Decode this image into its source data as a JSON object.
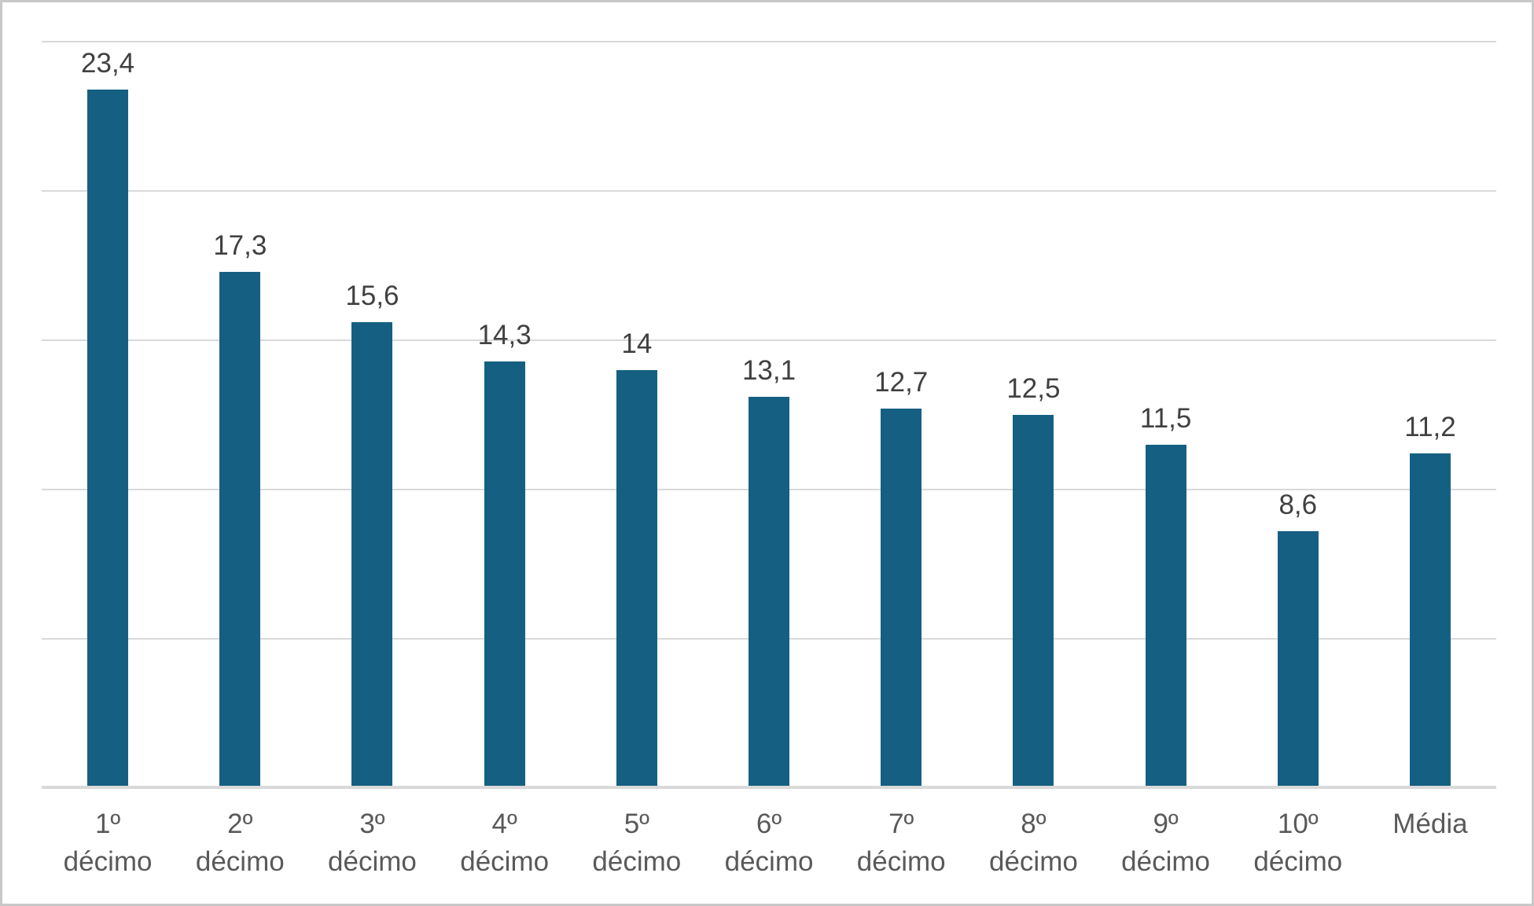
{
  "chart_data": {
    "type": "bar",
    "title": "",
    "xlabel": "",
    "ylabel": "",
    "categories": [
      "1º décimo",
      "2º décimo",
      "3º décimo",
      "4º décimo",
      "5º décimo",
      "6º décimo",
      "7º décimo",
      "8º décimo",
      "9º décimo",
      "10º décimo",
      "Média"
    ],
    "values": [
      23.4,
      17.3,
      15.6,
      14.3,
      14,
      13.1,
      12.7,
      12.5,
      11.5,
      8.6,
      11.2
    ],
    "value_labels": [
      "23,4",
      "17,3",
      "15,6",
      "14,3",
      "14",
      "13,1",
      "12,7",
      "12,5",
      "11,5",
      "8,6",
      "11,2"
    ],
    "ylim": [
      0,
      25
    ],
    "gridline_step": 5,
    "grid": true,
    "legend": "none",
    "y_axis_tick_labels_visible": false,
    "data_labels_position": "above-bar"
  },
  "colors": {
    "bar": "#156082",
    "gridline": "#d9d9d9",
    "axis_line": "#d9d9d9",
    "data_label": "#404040",
    "tick_label": "#595959",
    "background": "#ffffff",
    "frame_border": "#c8c8c8"
  }
}
